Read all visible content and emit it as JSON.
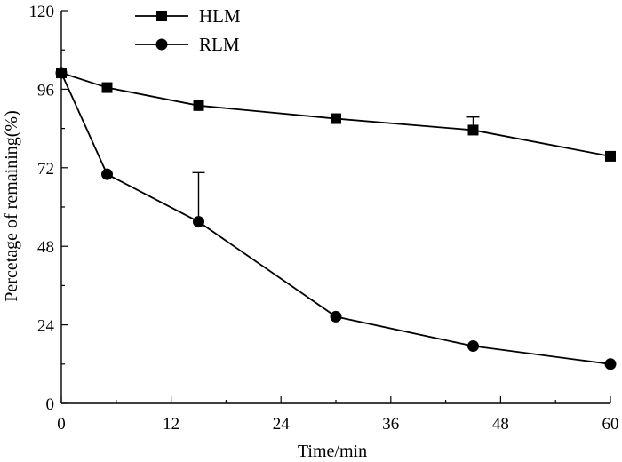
{
  "chart_data": {
    "type": "line",
    "title": "",
    "xlabel": "Time/min",
    "ylabel": "Percetage of remaining(%)",
    "xlim": [
      0,
      60
    ],
    "ylim": [
      0,
      120
    ],
    "xticks": [
      0,
      12,
      24,
      36,
      48,
      60
    ],
    "yticks": [
      0,
      24,
      48,
      72,
      96,
      120
    ],
    "grid": false,
    "legend_position": "top-left",
    "series": [
      {
        "name": "HLM",
        "marker": "square",
        "color": "#000000",
        "x": [
          0,
          5,
          15,
          30,
          45,
          60
        ],
        "y": [
          101,
          96.5,
          91,
          87,
          83.5,
          75.5
        ],
        "err_upper": [
          0,
          0,
          0,
          0,
          4,
          0
        ]
      },
      {
        "name": "RLM",
        "marker": "circle",
        "color": "#000000",
        "x": [
          0,
          5,
          15,
          30,
          45,
          60
        ],
        "y": [
          101,
          70,
          55.5,
          26.5,
          17.5,
          12
        ],
        "err_upper": [
          0,
          0,
          15,
          0,
          0,
          0
        ]
      }
    ]
  }
}
